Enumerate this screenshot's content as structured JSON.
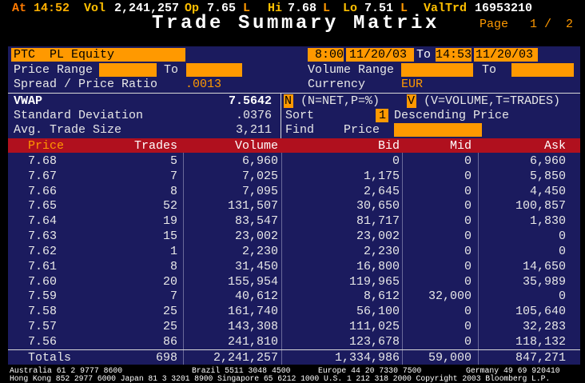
{
  "ticker_bar": {
    "at_label": "At",
    "time": "14:52",
    "vol_label": "Vol",
    "vol": "2,241,257",
    "op_label": "Op",
    "op": "7.65",
    "op_flag": "L",
    "hi_label": "Hi",
    "hi": "7.68",
    "hi_flag": "L",
    "lo_label": "Lo",
    "lo": "7.51",
    "lo_flag": "L",
    "valtrd_label": "ValTrd",
    "valtrd": "16953210"
  },
  "header": {
    "title": "Trade Summary Matrix",
    "page_label": "Page",
    "page": "1 /  2"
  },
  "form": {
    "ticker": "PTC",
    "security": "PL Equity",
    "start_time": "8:00",
    "start_date": "11/20/03",
    "to_label": "To",
    "end_time": "14:53",
    "end_date": "11/20/03",
    "price_range_label": "Price Range",
    "price_to_label": "To",
    "volume_range_label": "Volume Range",
    "volume_to_label": "To",
    "spread_label": "Spread / Price Ratio",
    "spread": ".0013",
    "currency_label": "Currency",
    "currency": "EUR"
  },
  "stats": {
    "vwap_label": "VWAP",
    "vwap": "7.5642",
    "std_label": "Standard Deviation",
    "std": ".0376",
    "avg_label": "Avg. Trade Size",
    "avg": "3,211"
  },
  "options": {
    "net_code": "N",
    "net_help": "(N=NET,P=%)",
    "vol_code": "V",
    "vol_help": "(V=VOLUME,T=TRADES)",
    "sort_label": "Sort",
    "sort_code": "1",
    "sort_desc": "Descending Price",
    "find_label": "Find",
    "find_field": "Price"
  },
  "table": {
    "columns": [
      "Price",
      "Trades",
      "Volume",
      "Bid",
      "Mid",
      "Ask"
    ],
    "rows": [
      [
        "7.68",
        "5",
        "6,960",
        "0",
        "0",
        "6,960"
      ],
      [
        "7.67",
        "7",
        "7,025",
        "1,175",
        "0",
        "5,850"
      ],
      [
        "7.66",
        "8",
        "7,095",
        "2,645",
        "0",
        "4,450"
      ],
      [
        "7.65",
        "52",
        "131,507",
        "30,650",
        "0",
        "100,857"
      ],
      [
        "7.64",
        "19",
        "83,547",
        "81,717",
        "0",
        "1,830"
      ],
      [
        "7.63",
        "15",
        "23,002",
        "23,002",
        "0",
        "0"
      ],
      [
        "7.62",
        "1",
        "2,230",
        "2,230",
        "0",
        "0"
      ],
      [
        "7.61",
        "8",
        "31,450",
        "16,800",
        "0",
        "14,650"
      ],
      [
        "7.60",
        "20",
        "155,954",
        "119,965",
        "0",
        "35,989"
      ],
      [
        "7.59",
        "7",
        "40,612",
        "8,612",
        "32,000",
        "0"
      ],
      [
        "7.58",
        "25",
        "161,740",
        "56,100",
        "0",
        "105,640"
      ],
      [
        "7.57",
        "25",
        "143,308",
        "111,025",
        "0",
        "32,283"
      ],
      [
        "7.56",
        "86",
        "241,810",
        "123,678",
        "0",
        "118,132"
      ]
    ],
    "totals": [
      "Totals",
      "698",
      "2,241,257",
      "1,334,986",
      "59,000",
      "847,271"
    ]
  },
  "footer": {
    "line1": [
      "Australia 61 2 9777 8600",
      "Brazil 5511 3048 4500",
      "Europe 44 20 7330 7500",
      "Germany 49 69 920410"
    ],
    "line2": "Hong Kong 852 2977 6000 Japan 81 3 3201 8900 Singapore 65 6212 1000 U.S. 1 212 318 2000 Copyright 2003 Bloomberg L.P."
  }
}
